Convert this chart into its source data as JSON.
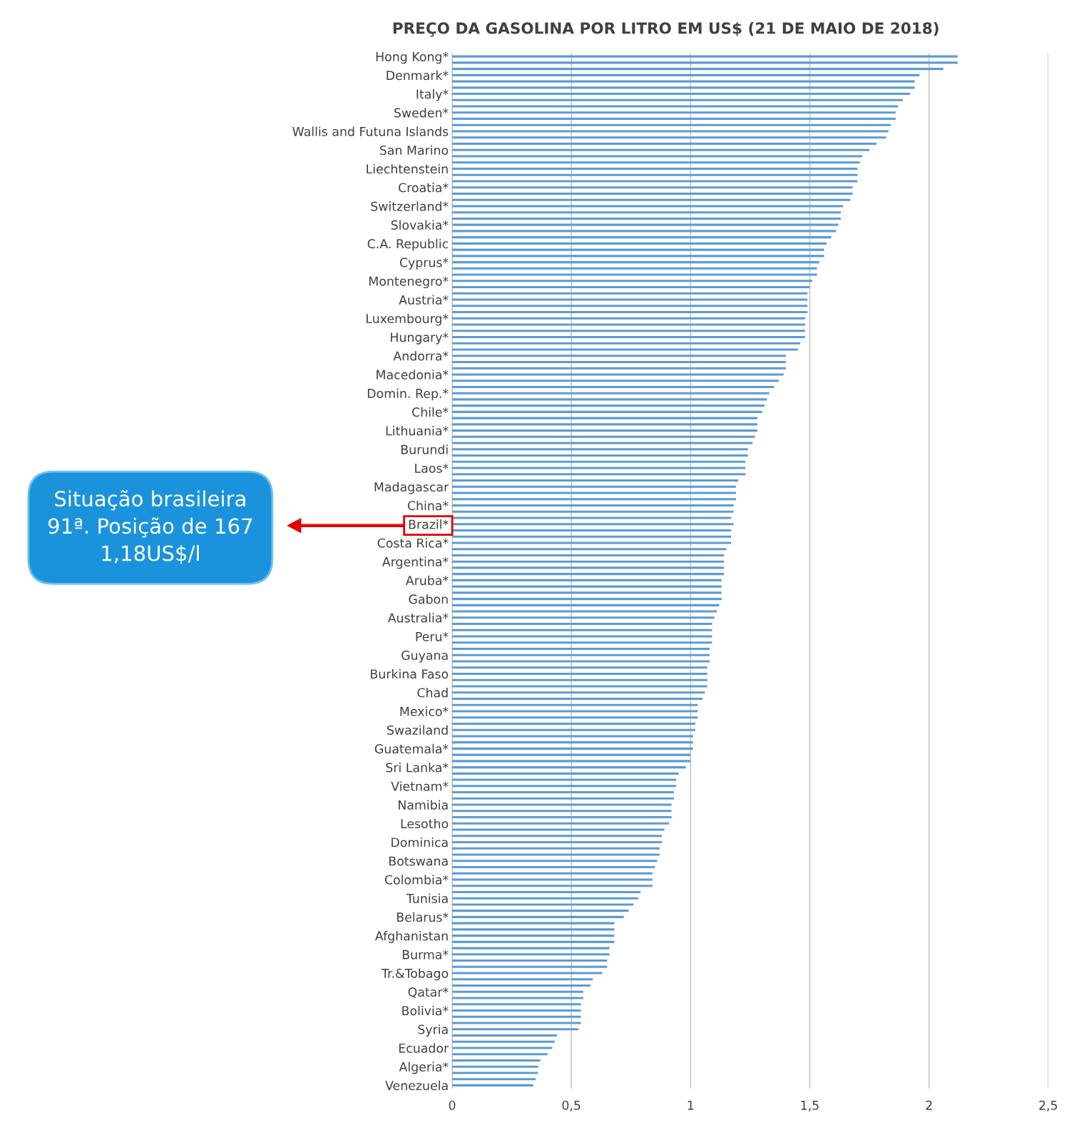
{
  "chart_data": {
    "type": "bar",
    "orientation": "horizontal",
    "title": "PREÇO DA GASOLINA POR LITRO EM US$ (21 DE MAIO DE 2018)",
    "categories": [
      "Hong Kong*",
      null,
      null,
      "Denmark*",
      null,
      null,
      "Italy*",
      null,
      null,
      "Sweden*",
      null,
      null,
      "Wallis and Futuna Islands",
      null,
      null,
      "San Marino",
      null,
      null,
      "Liechtenstein",
      null,
      null,
      "Croatia*",
      null,
      null,
      "Switzerland*",
      null,
      null,
      "Slovakia*",
      null,
      null,
      "C.A. Republic",
      null,
      null,
      "Cyprus*",
      null,
      null,
      "Montenegro*",
      null,
      null,
      "Austria*",
      null,
      null,
      "Luxembourg*",
      null,
      null,
      "Hungary*",
      null,
      null,
      "Andorra*",
      null,
      null,
      "Macedonia*",
      null,
      null,
      "Domin. Rep.*",
      null,
      null,
      "Chile*",
      null,
      null,
      "Lithuania*",
      null,
      null,
      "Burundi",
      null,
      null,
      "Laos*",
      null,
      null,
      "Madagascar",
      null,
      null,
      "China*",
      null,
      null,
      "Brazil*",
      null,
      null,
      "Costa Rica*",
      null,
      null,
      "Argentina*",
      null,
      null,
      "Aruba*",
      null,
      null,
      "Gabon",
      null,
      null,
      "Australia*",
      null,
      null,
      "Peru*",
      null,
      null,
      "Guyana",
      null,
      null,
      "Burkina Faso",
      null,
      null,
      "Chad",
      null,
      null,
      "Mexico*",
      null,
      null,
      "Swaziland",
      null,
      null,
      "Guatemala*",
      null,
      null,
      "Sri Lanka*",
      null,
      null,
      "Vietnam*",
      null,
      null,
      "Namibia",
      null,
      null,
      "Lesotho",
      null,
      null,
      "Dominica",
      null,
      null,
      "Botswana",
      null,
      null,
      "Colombia*",
      null,
      null,
      "Tunisia",
      null,
      null,
      "Belarus*",
      null,
      null,
      "Afghanistan",
      null,
      null,
      "Burma*",
      null,
      null,
      "Tr.&Tobago",
      null,
      null,
      "Qatar*",
      null,
      null,
      "Bolivia*",
      null,
      null,
      "Syria",
      null,
      null,
      "Ecuador",
      null,
      null,
      "Algeria*",
      null,
      null,
      "Venezuela"
    ],
    "values": [
      2.12,
      2.12,
      2.06,
      1.96,
      1.94,
      1.94,
      1.92,
      1.89,
      1.87,
      1.86,
      1.86,
      1.84,
      1.83,
      1.82,
      1.78,
      1.75,
      1.72,
      1.71,
      1.7,
      1.7,
      1.7,
      1.68,
      1.68,
      1.67,
      1.64,
      1.63,
      1.63,
      1.62,
      1.61,
      1.59,
      1.57,
      1.56,
      1.56,
      1.54,
      1.53,
      1.53,
      1.51,
      1.5,
      1.49,
      1.49,
      1.49,
      1.49,
      1.48,
      1.48,
      1.48,
      1.48,
      1.46,
      1.45,
      1.4,
      1.4,
      1.4,
      1.39,
      1.37,
      1.35,
      1.33,
      1.32,
      1.31,
      1.3,
      1.28,
      1.28,
      1.28,
      1.27,
      1.26,
      1.24,
      1.24,
      1.23,
      1.23,
      1.23,
      1.2,
      1.19,
      1.19,
      1.19,
      1.18,
      1.18,
      1.17,
      1.18,
      1.17,
      1.17,
      1.17,
      1.15,
      1.14,
      1.14,
      1.14,
      1.14,
      1.13,
      1.13,
      1.13,
      1.13,
      1.12,
      1.11,
      1.1,
      1.09,
      1.09,
      1.09,
      1.09,
      1.08,
      1.08,
      1.08,
      1.07,
      1.07,
      1.07,
      1.07,
      1.06,
      1.05,
      1.03,
      1.03,
      1.03,
      1.02,
      1.02,
      1.01,
      1.01,
      1.01,
      1.0,
      1.0,
      0.98,
      0.95,
      0.94,
      0.94,
      0.93,
      0.93,
      0.92,
      0.92,
      0.92,
      0.91,
      0.89,
      0.88,
      0.88,
      0.87,
      0.87,
      0.86,
      0.85,
      0.84,
      0.84,
      0.84,
      0.79,
      0.78,
      0.76,
      0.74,
      0.72,
      0.68,
      0.68,
      0.68,
      0.68,
      0.66,
      0.66,
      0.65,
      0.65,
      0.63,
      0.59,
      0.58,
      0.55,
      0.55,
      0.54,
      0.54,
      0.54,
      0.54,
      0.53,
      0.44,
      0.43,
      0.42,
      0.4,
      0.37,
      0.36,
      0.36,
      0.35,
      0.34
    ],
    "color": "#5b9bd5",
    "xlim": [
      0,
      2.5
    ],
    "xticks": [
      0,
      {
        "value": 0.5,
        "label": "0,5"
      },
      1,
      {
        "value": 1.5,
        "label": "1,5"
      },
      2,
      {
        "value": 2.5,
        "label": "2,5"
      }
    ],
    "grid": "x",
    "annotations": [
      "Situação brasileira\n91ª. Posição de 167\n1,18US$/l"
    ]
  }
}
